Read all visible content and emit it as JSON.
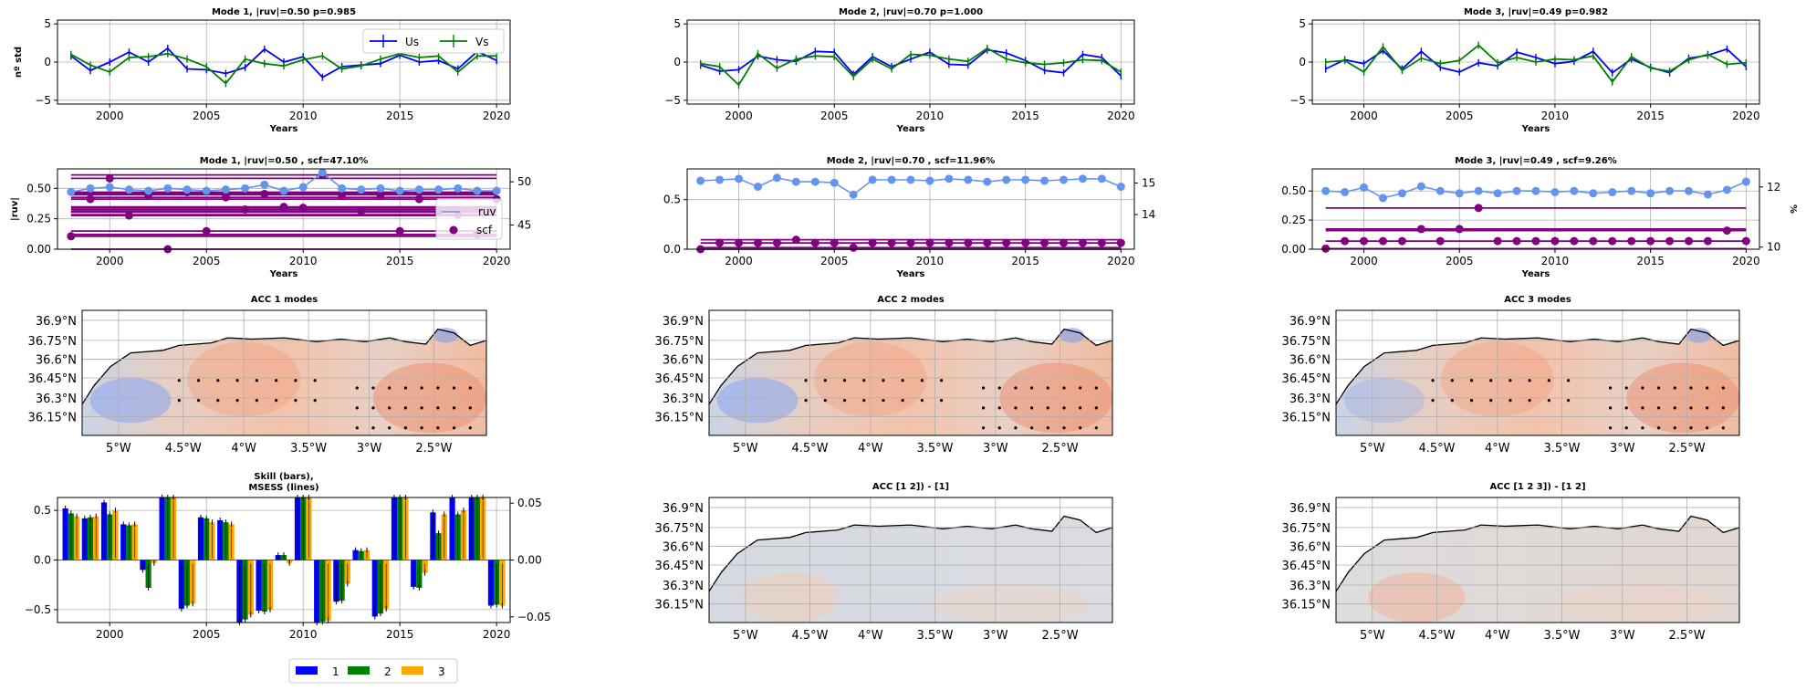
{
  "years": [
    1998,
    1999,
    2000,
    2001,
    2002,
    2003,
    2004,
    2005,
    2006,
    2007,
    2008,
    2009,
    2010,
    2011,
    2012,
    2013,
    2014,
    2015,
    2016,
    2017,
    2018,
    2019,
    2020
  ],
  "year_ticks": [
    "2000",
    "2005",
    "2010",
    "2015",
    "2020"
  ],
  "xlabel": "Years",
  "colors": {
    "us": "#0000ff",
    "vs": "#008000",
    "ruv": "#6495ed",
    "scf": "#800080",
    "b1": "#0000ff",
    "b2": "#008000",
    "b3": "#ffa500",
    "coast": "#000000"
  },
  "chart_data": [
    {
      "type": "line",
      "title": "Mode 1, |ruv|=0.50 p=0.985",
      "ylabel": "nº std",
      "ylim": [
        -5.5,
        5.5
      ],
      "yticks": [
        "5",
        "0",
        "−5"
      ],
      "legend": [
        "Us",
        "Vs"
      ],
      "legend_position": "top-right",
      "series": [
        {
          "name": "Us",
          "values": [
            0.8,
            -1.1,
            0.0,
            1.3,
            0.0,
            1.8,
            -0.9,
            -1.0,
            -1.5,
            -0.7,
            1.7,
            0.0,
            0.7,
            -2.0,
            -0.6,
            -0.4,
            -0.2,
            0.9,
            0.0,
            0.2,
            -0.9,
            1.4,
            0.2
          ]
        },
        {
          "name": "Vs",
          "values": [
            1.0,
            -0.4,
            -1.3,
            0.6,
            0.7,
            1.1,
            0.4,
            -0.6,
            -2.8,
            0.4,
            -0.2,
            -0.5,
            0.3,
            0.8,
            -0.9,
            -0.5,
            0.4,
            1.1,
            0.6,
            0.8,
            -1.3,
            0.8,
            0.8
          ]
        }
      ]
    },
    {
      "type": "line",
      "title": "Mode 2, |ruv|=0.70 p=1.000",
      "ylim": [
        -5.5,
        5.5
      ],
      "yticks": [
        "5",
        "0",
        "−5"
      ],
      "series": [
        {
          "name": "Us",
          "values": [
            -0.4,
            -1.2,
            -1.0,
            0.8,
            0.3,
            0.1,
            1.4,
            1.3,
            -1.6,
            0.7,
            -0.6,
            0.4,
            1.3,
            -0.3,
            -0.4,
            1.6,
            1.2,
            0.2,
            -1.1,
            -1.4,
            1.0,
            0.6,
            -1.8
          ]
        },
        {
          "name": "Vs",
          "values": [
            -0.2,
            -0.6,
            -3.0,
            1.1,
            -0.8,
            0.4,
            0.8,
            0.7,
            -1.9,
            0.4,
            -0.9,
            1.0,
            0.9,
            0.4,
            0.1,
            1.8,
            0.4,
            -0.1,
            -0.3,
            -0.1,
            0.3,
            0.2,
            -1.3
          ]
        }
      ]
    },
    {
      "type": "line",
      "title": "Mode 3, |ruv|=0.49 p=0.982",
      "ylim": [
        -5.5,
        5.5
      ],
      "yticks": [
        "5",
        "0",
        "−5"
      ],
      "series": [
        {
          "name": "Us",
          "values": [
            -0.9,
            0.3,
            -0.2,
            1.5,
            -0.9,
            1.4,
            -0.7,
            -1.3,
            -0.1,
            -0.5,
            1.3,
            0.6,
            -0.2,
            0.1,
            1.4,
            -1.4,
            0.4,
            -0.7,
            -1.4,
            0.5,
            0.9,
            1.7,
            -0.6
          ]
        },
        {
          "name": "Vs",
          "values": [
            0.0,
            0.2,
            -1.3,
            2.0,
            -1.1,
            0.5,
            -0.2,
            0.2,
            2.2,
            -0.1,
            0.6,
            0.0,
            0.4,
            0.3,
            0.8,
            -2.6,
            0.7,
            -0.8,
            -1.2,
            0.3,
            1.0,
            -0.3,
            -0.1
          ]
        }
      ]
    },
    {
      "type": "line+scatter",
      "title": "Mode 1, |ruv|=0.50 , scf=47.10%",
      "ylabel": "|ruv|",
      "ylim": [
        0,
        0.66
      ],
      "yticks": [
        "0.50",
        "0.25",
        "0.00"
      ],
      "y2lim": [
        42.2,
        51.5
      ],
      "y2ticks": [
        "50",
        "45"
      ],
      "legend": [
        "ruv",
        "scf"
      ],
      "legend_position": "lower-right",
      "ruv_values": [
        0.47,
        0.5,
        0.51,
        0.49,
        0.48,
        0.5,
        0.49,
        0.48,
        0.49,
        0.5,
        0.53,
        0.48,
        0.51,
        0.63,
        0.5,
        0.49,
        0.5,
        0.48,
        0.49,
        0.49,
        0.5,
        0.48,
        0.48
      ],
      "scf_values": [
        43.7,
        48.0,
        50.4,
        46.1,
        48.5,
        42.2,
        48.8,
        44.3,
        48.2,
        46.8,
        48.6,
        47.1,
        47.0,
        50.8,
        48.5,
        46.6,
        48.5,
        44.3,
        48.0,
        46.5,
        46.2,
        43.9,
        48.0
      ]
    },
    {
      "type": "line+scatter",
      "title": "Mode 2, |ruv|=0.70 , scf=11.96%",
      "ylim": [
        0,
        0.81
      ],
      "yticks": [
        "0.5",
        "0.0"
      ],
      "y2lim": [
        12.9,
        15.45
      ],
      "y2ticks": [
        "15",
        "14"
      ],
      "ruv_values": [
        0.69,
        0.7,
        0.71,
        0.63,
        0.72,
        0.68,
        0.68,
        0.67,
        0.55,
        0.7,
        0.7,
        0.7,
        0.69,
        0.71,
        0.7,
        0.68,
        0.7,
        0.7,
        0.69,
        0.7,
        0.71,
        0.71,
        0.63
      ],
      "scf_values": [
        12.9,
        13.1,
        13.1,
        13.1,
        13.1,
        13.2,
        13.1,
        13.1,
        12.95,
        13.1,
        13.1,
        13.1,
        13.1,
        13.1,
        13.1,
        13.1,
        13.1,
        13.1,
        13.1,
        13.1,
        13.1,
        13.1,
        13.1
      ]
    },
    {
      "type": "line+scatter",
      "title": "Mode 3, |ruv|=0.49 , scf=9.26%",
      "ylabel2": "%",
      "ylim": [
        0,
        0.69
      ],
      "yticks": [
        "0.50",
        "0.25",
        "0.00"
      ],
      "y2lim": [
        9.93,
        12.6
      ],
      "y2ticks": [
        "12",
        "10"
      ],
      "ruv_values": [
        0.5,
        0.49,
        0.53,
        0.44,
        0.48,
        0.54,
        0.5,
        0.48,
        0.5,
        0.48,
        0.5,
        0.5,
        0.49,
        0.5,
        0.48,
        0.49,
        0.5,
        0.48,
        0.5,
        0.5,
        0.47,
        0.51,
        0.58
      ],
      "scf_values": [
        9.95,
        10.2,
        10.2,
        10.2,
        10.2,
        10.6,
        10.2,
        10.6,
        11.3,
        10.2,
        10.2,
        10.2,
        10.2,
        10.2,
        10.2,
        10.2,
        10.2,
        10.2,
        10.2,
        10.2,
        10.2,
        10.55,
        10.2
      ]
    },
    {
      "type": "bar",
      "title": "Skill (bars),\nMSESS (lines)",
      "ylim": [
        -0.63,
        0.63
      ],
      "yticks": [
        "0.5",
        "0.0",
        "−0.5"
      ],
      "y2lim": [
        -0.055,
        0.055
      ],
      "y2ticks": [
        "0.05",
        "0.00",
        "−0.05"
      ],
      "legend": [
        "1",
        "2",
        "3"
      ],
      "legend_position": "bottom-outside",
      "series": [
        {
          "name": "1",
          "values": [
            0.52,
            0.42,
            0.58,
            0.36,
            -0.1,
            0.63,
            -0.49,
            0.43,
            0.4,
            -0.63,
            -0.51,
            0.05,
            0.63,
            -0.63,
            -0.42,
            0.1,
            -0.57,
            0.63,
            -0.27,
            0.48,
            0.63,
            0.63,
            -0.46
          ]
        },
        {
          "name": "2",
          "values": [
            0.47,
            0.43,
            0.46,
            0.35,
            -0.28,
            0.63,
            -0.46,
            0.42,
            0.38,
            -0.6,
            -0.52,
            0.05,
            0.63,
            -0.62,
            -0.41,
            0.09,
            -0.54,
            0.63,
            -0.28,
            0.27,
            0.46,
            0.63,
            -0.45
          ]
        },
        {
          "name": "3",
          "values": [
            0.44,
            0.44,
            0.5,
            0.36,
            -0.03,
            0.63,
            -0.44,
            0.38,
            0.36,
            -0.55,
            -0.5,
            -0.03,
            0.63,
            -0.61,
            -0.24,
            0.1,
            -0.49,
            0.63,
            -0.13,
            0.46,
            0.5,
            0.63,
            -0.46
          ]
        }
      ]
    }
  ],
  "maps": [
    {
      "title": "ACC 1 modes",
      "kind": "acc",
      "variant": 1
    },
    {
      "title": "ACC 2 modes",
      "kind": "acc",
      "variant": 2
    },
    {
      "title": "ACC 3 modes",
      "kind": "acc",
      "variant": 3
    },
    {
      "title": "ACC [1 2]) - [1]",
      "kind": "diff",
      "variant": 1
    },
    {
      "title": "ACC [1 2 3]) - [1 2]",
      "kind": "diff",
      "variant": 2
    }
  ],
  "map_lat_ticks": [
    "36.9°N",
    "36.75°N",
    "36.6°N",
    "36.45°N",
    "36.3°N",
    "36.15°N"
  ],
  "map_lon_ticks": [
    "5°W",
    "4.5°W",
    "4°W",
    "3.5°W",
    "3°W",
    "2.5°W"
  ]
}
